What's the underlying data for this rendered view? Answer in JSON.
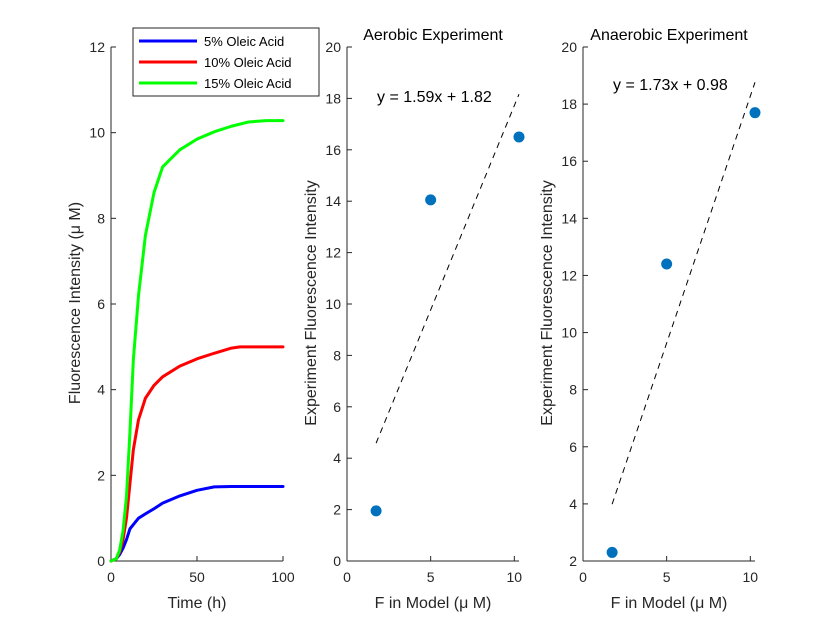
{
  "chart_data": [
    {
      "type": "line",
      "title": "",
      "xlabel": "Time (h)",
      "ylabel": "Fluorescence Intensity (μ M)",
      "xlim": [
        0,
        100
      ],
      "ylim": [
        0,
        12
      ],
      "xticks": [
        0,
        50,
        100
      ],
      "yticks": [
        0,
        2,
        4,
        6,
        8,
        10,
        12
      ],
      "legend_position": "top-right",
      "series": [
        {
          "name": "5% Oleic Acid",
          "color": "#0000ff",
          "x": [
            0,
            3,
            5,
            7,
            9,
            11,
            13,
            16,
            20,
            25,
            30,
            40,
            50,
            60,
            70,
            80,
            90,
            100
          ],
          "y": [
            0,
            0.05,
            0.15,
            0.3,
            0.5,
            0.75,
            0.85,
            1.0,
            1.1,
            1.22,
            1.35,
            1.52,
            1.65,
            1.73,
            1.74,
            1.74,
            1.74,
            1.74
          ]
        },
        {
          "name": "10% Oleic Acid",
          "color": "#ff0000",
          "x": [
            0,
            3,
            5,
            7,
            9,
            11,
            13,
            16,
            20,
            25,
            30,
            40,
            50,
            60,
            70,
            75,
            80,
            90,
            100
          ],
          "y": [
            0,
            0.05,
            0.2,
            0.5,
            1.0,
            1.8,
            2.6,
            3.3,
            3.8,
            4.1,
            4.3,
            4.55,
            4.72,
            4.85,
            4.97,
            5.0,
            5.0,
            5.0,
            5.0
          ]
        },
        {
          "name": "15% Oleic Acid",
          "color": "#00ff00",
          "x": [
            0,
            3,
            5,
            7,
            9,
            11,
            13,
            16,
            20,
            25,
            30,
            40,
            50,
            60,
            70,
            80,
            90,
            95,
            100
          ],
          "y": [
            0,
            0.05,
            0.25,
            0.7,
            1.5,
            3.0,
            4.7,
            6.2,
            7.6,
            8.6,
            9.2,
            9.6,
            9.85,
            10.02,
            10.15,
            10.25,
            10.28,
            10.28,
            10.28
          ]
        }
      ]
    },
    {
      "type": "scatter",
      "title": "Aerobic Experiment",
      "xlabel": "F in Model (μ M)",
      "ylabel": "Experiment Fluorescence Intensity",
      "xlim": [
        0,
        10.28
      ],
      "ylim": [
        0,
        20
      ],
      "xticks": [
        0,
        5,
        10
      ],
      "yticks": [
        0,
        2,
        4,
        6,
        8,
        10,
        12,
        14,
        16,
        18,
        20
      ],
      "points": {
        "x": [
          1.74,
          5.0,
          10.28
        ],
        "y": [
          1.95,
          14.05,
          16.5
        ],
        "color": "#0072bd"
      },
      "fit": {
        "slope": 1.59,
        "intercept": 1.82,
        "x_range": [
          1.74,
          10.28
        ],
        "equation": "y = 1.59x + 1.82"
      }
    },
    {
      "type": "scatter",
      "title": "Anaerobic Experiment",
      "xlabel": "F in Model (μ M)",
      "ylabel": "Experiment Fluorescence Intensity",
      "xlim": [
        0,
        10.28
      ],
      "ylim": [
        2,
        20
      ],
      "xticks": [
        0,
        5,
        10
      ],
      "yticks": [
        2,
        4,
        6,
        8,
        10,
        12,
        14,
        16,
        18,
        20
      ],
      "points": {
        "x": [
          1.74,
          5.0,
          10.28
        ],
        "y": [
          2.3,
          12.4,
          17.7
        ],
        "color": "#0072bd"
      },
      "fit": {
        "slope": 1.73,
        "intercept": 0.98,
        "x_range": [
          1.74,
          10.28
        ],
        "equation": "y = 1.73x + 0.98"
      }
    }
  ]
}
